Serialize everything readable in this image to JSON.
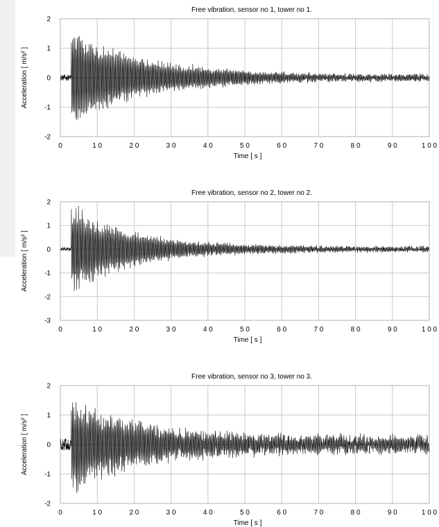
{
  "chart_data": [
    {
      "type": "line",
      "title": "Free vibration, sensor no 1, tower no 1.",
      "xlabel": "Time [ s ]",
      "ylabel": "Acceleration [ m/s² ]",
      "xlim": [
        0,
        100
      ],
      "ylim": [
        -2,
        2
      ],
      "xticks": [
        0,
        10,
        20,
        30,
        40,
        50,
        60,
        70,
        80,
        90,
        100
      ],
      "xtick_labels": [
        "0",
        "1 0",
        "2 0",
        "3 0",
        "4 0",
        "5 0",
        "6 0",
        "7 0",
        "8 0",
        "9 0",
        "1 0 0"
      ],
      "yticks": [
        -2,
        -1,
        0,
        1,
        2
      ],
      "ytick_labels": [
        "-2",
        "-1",
        "0",
        "1",
        "2"
      ],
      "grid": true,
      "signal": {
        "onset_s": 3,
        "peak_amplitude": 1.75,
        "envelope": [
          [
            3,
            1.75
          ],
          [
            10,
            1.2
          ],
          [
            20,
            0.75
          ],
          [
            30,
            0.5
          ],
          [
            40,
            0.35
          ],
          [
            50,
            0.25
          ],
          [
            60,
            0.18
          ],
          [
            70,
            0.14
          ],
          [
            80,
            0.12
          ],
          [
            90,
            0.1
          ],
          [
            100,
            0.1
          ]
        ],
        "pre_onset_noise": 0.1,
        "noise_floor": 0.06
      }
    },
    {
      "type": "line",
      "title": "Free vibration, sensor no 2, tower no 2.",
      "xlabel": "Time [ s ]",
      "ylabel": "Acceleration [ m/s² ]",
      "xlim": [
        0,
        100
      ],
      "ylim": [
        -3,
        2
      ],
      "xticks": [
        0,
        10,
        20,
        30,
        40,
        50,
        60,
        70,
        80,
        90,
        100
      ],
      "xtick_labels": [
        "0",
        "1 0",
        "2 0",
        "3 0",
        "4 0",
        "5 0",
        "6 0",
        "7 0",
        "8 0",
        "9 0",
        "1 0 0"
      ],
      "yticks": [
        -3,
        -2,
        -1,
        0,
        1,
        2
      ],
      "ytick_labels": [
        "-3",
        "-2",
        "-1",
        "0",
        "1",
        "2"
      ],
      "grid": true,
      "signal": {
        "onset_s": 3,
        "peak_amplitude": 1.95,
        "envelope": [
          [
            3,
            1.95
          ],
          [
            10,
            1.3
          ],
          [
            20,
            0.75
          ],
          [
            30,
            0.45
          ],
          [
            40,
            0.28
          ],
          [
            50,
            0.2
          ],
          [
            60,
            0.15
          ],
          [
            70,
            0.12
          ],
          [
            80,
            0.1
          ],
          [
            90,
            0.1
          ],
          [
            100,
            0.1
          ]
        ],
        "pre_onset_noise": 0.08,
        "noise_floor": 0.06
      }
    },
    {
      "type": "line",
      "title": "Free vibration, sensor no 3, tower no 3.",
      "xlabel": "Time [ s ]",
      "ylabel": "Acceleration [ m/s² ]",
      "xlim": [
        0,
        100
      ],
      "ylim": [
        -2,
        2
      ],
      "xticks": [
        0,
        10,
        20,
        30,
        40,
        50,
        60,
        70,
        80,
        90,
        100
      ],
      "xtick_labels": [
        "0",
        "1 0",
        "2 0",
        "3 0",
        "4 0",
        "5 0",
        "6 0",
        "7 0",
        "8 0",
        "9 0",
        "1 0 0"
      ],
      "yticks": [
        -2,
        -1,
        0,
        1,
        2
      ],
      "ytick_labels": [
        "-2",
        "-1",
        "0",
        "1",
        "2"
      ],
      "grid": true,
      "signal": {
        "onset_s": 3,
        "peak_amplitude": 1.7,
        "envelope": [
          [
            3,
            1.7
          ],
          [
            10,
            1.2
          ],
          [
            20,
            0.8
          ],
          [
            30,
            0.55
          ],
          [
            40,
            0.42
          ],
          [
            50,
            0.35
          ],
          [
            60,
            0.3
          ],
          [
            70,
            0.28
          ],
          [
            80,
            0.25
          ],
          [
            90,
            0.25
          ],
          [
            100,
            0.25
          ]
        ],
        "pre_onset_noise": 0.2,
        "noise_floor": 0.15
      }
    }
  ]
}
